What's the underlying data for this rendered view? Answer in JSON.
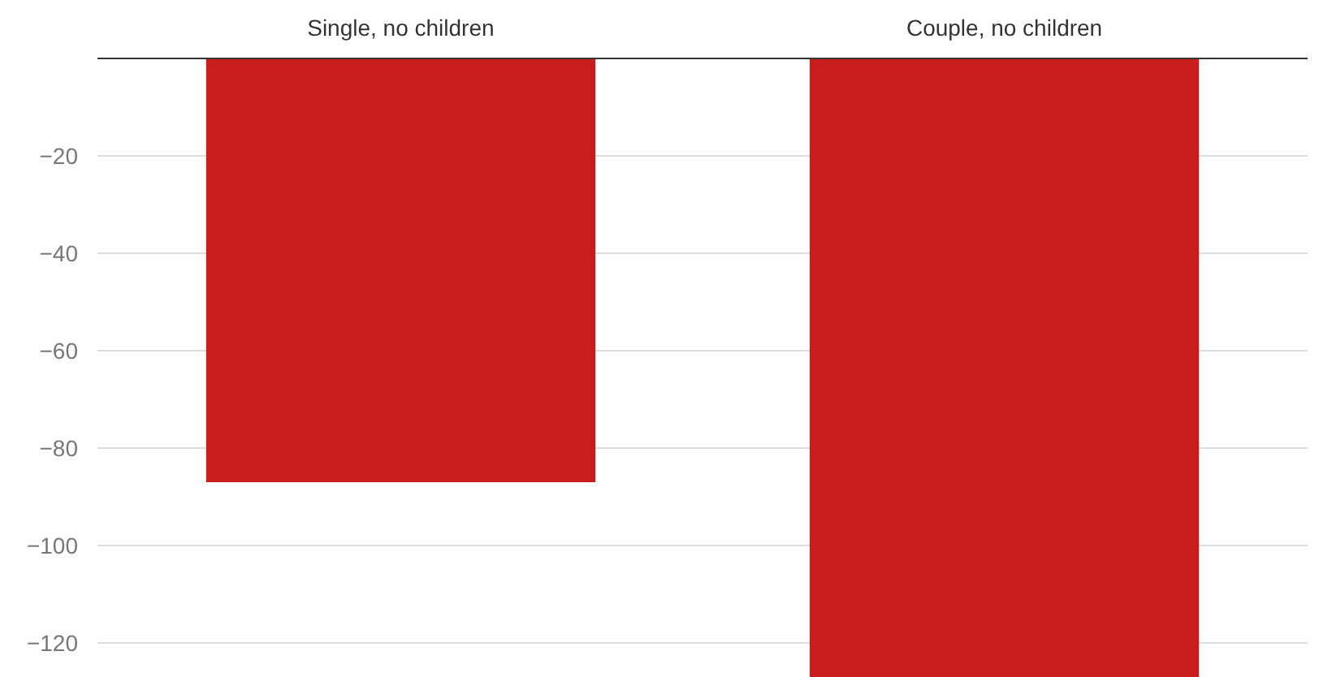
{
  "chart_data": {
    "type": "bar",
    "categories": [
      "Single, no children",
      "Couple, no children"
    ],
    "values": [
      -87,
      -127
    ],
    "color": "#c91d1d",
    "ylim": [
      -127,
      0
    ],
    "yticks": [
      {
        "value": -20,
        "label": "−20"
      },
      {
        "value": -40,
        "label": "−40"
      },
      {
        "value": -60,
        "label": "−60"
      },
      {
        "value": -80,
        "label": "−80"
      },
      {
        "value": -100,
        "label": "−100"
      },
      {
        "value": -120,
        "label": "−120"
      }
    ],
    "grid": "y"
  }
}
